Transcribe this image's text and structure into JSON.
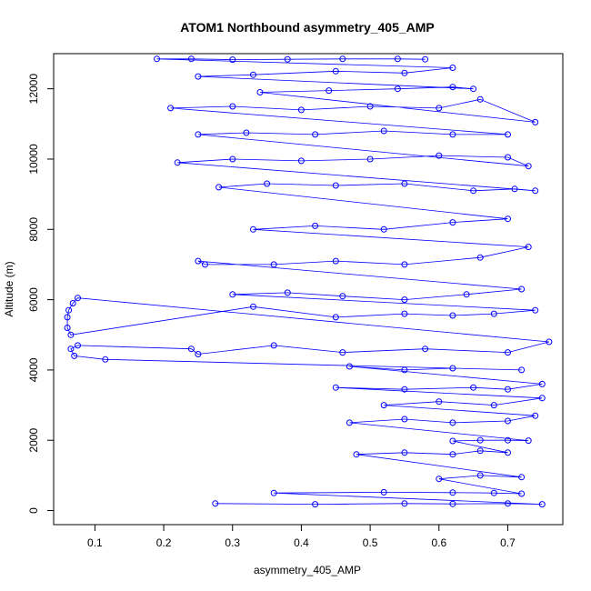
{
  "chart_data": {
    "type": "scatter",
    "title": "ATOM1 Northbound asymmetry_405_AMP",
    "xlabel": "asymmetry_405_AMP",
    "ylabel": "Altitude (m)",
    "xlim": [
      0.04,
      0.78
    ],
    "ylim": [
      -400,
      13000
    ],
    "x_ticks": [
      0.1,
      0.2,
      0.3,
      0.4,
      0.5,
      0.6,
      0.7
    ],
    "y_ticks": [
      0,
      2000,
      4000,
      6000,
      8000,
      10000,
      12000
    ],
    "grid": false,
    "legend": "none",
    "color": "#0000ff",
    "marker": "open-circle",
    "connected": true,
    "series": [
      {
        "points": [
          [
            0.275,
            200
          ],
          [
            0.42,
            180
          ],
          [
            0.55,
            200
          ],
          [
            0.62,
            190
          ],
          [
            0.7,
            200
          ],
          [
            0.75,
            180
          ],
          [
            0.36,
            500
          ],
          [
            0.52,
            520
          ],
          [
            0.62,
            510
          ],
          [
            0.68,
            500
          ],
          [
            0.72,
            480
          ],
          [
            0.6,
            900
          ],
          [
            0.66,
            1000
          ],
          [
            0.72,
            950
          ],
          [
            0.48,
            1600
          ],
          [
            0.55,
            1650
          ],
          [
            0.62,
            1600
          ],
          [
            0.66,
            1700
          ],
          [
            0.7,
            1650
          ],
          [
            0.62,
            1980
          ],
          [
            0.66,
            2000
          ],
          [
            0.7,
            2000
          ],
          [
            0.73,
            1990
          ],
          [
            0.47,
            2500
          ],
          [
            0.55,
            2600
          ],
          [
            0.62,
            2500
          ],
          [
            0.7,
            2550
          ],
          [
            0.74,
            2700
          ],
          [
            0.52,
            3000
          ],
          [
            0.6,
            3100
          ],
          [
            0.68,
            3000
          ],
          [
            0.75,
            3200
          ],
          [
            0.45,
            3500
          ],
          [
            0.55,
            3450
          ],
          [
            0.65,
            3500
          ],
          [
            0.7,
            3450
          ],
          [
            0.75,
            3600
          ],
          [
            0.47,
            4100
          ],
          [
            0.55,
            4000
          ],
          [
            0.62,
            4050
          ],
          [
            0.72,
            4000
          ],
          [
            0.115,
            4300
          ],
          [
            0.07,
            4400
          ],
          [
            0.065,
            4600
          ],
          [
            0.075,
            4700
          ],
          [
            0.24,
            4600
          ],
          [
            0.25,
            4450
          ],
          [
            0.36,
            4700
          ],
          [
            0.46,
            4500
          ],
          [
            0.58,
            4600
          ],
          [
            0.7,
            4500
          ],
          [
            0.76,
            4800
          ],
          [
            0.075,
            6050
          ],
          [
            0.068,
            5900
          ],
          [
            0.062,
            5700
          ],
          [
            0.06,
            5500
          ],
          [
            0.06,
            5200
          ],
          [
            0.065,
            5000
          ],
          [
            0.33,
            5800
          ],
          [
            0.45,
            5500
          ],
          [
            0.55,
            5600
          ],
          [
            0.62,
            5550
          ],
          [
            0.68,
            5600
          ],
          [
            0.74,
            5700
          ],
          [
            0.3,
            6150
          ],
          [
            0.38,
            6200
          ],
          [
            0.46,
            6100
          ],
          [
            0.55,
            6000
          ],
          [
            0.64,
            6150
          ],
          [
            0.72,
            6300
          ],
          [
            0.25,
            7100
          ],
          [
            0.26,
            7000
          ],
          [
            0.36,
            7000
          ],
          [
            0.45,
            7100
          ],
          [
            0.55,
            7000
          ],
          [
            0.66,
            7200
          ],
          [
            0.73,
            7500
          ],
          [
            0.33,
            8000
          ],
          [
            0.42,
            8100
          ],
          [
            0.52,
            8000
          ],
          [
            0.62,
            8200
          ],
          [
            0.7,
            8300
          ],
          [
            0.28,
            9200
          ],
          [
            0.35,
            9300
          ],
          [
            0.45,
            9250
          ],
          [
            0.55,
            9300
          ],
          [
            0.65,
            9100
          ],
          [
            0.71,
            9150
          ],
          [
            0.74,
            9100
          ],
          [
            0.22,
            9900
          ],
          [
            0.3,
            10000
          ],
          [
            0.4,
            9950
          ],
          [
            0.5,
            10000
          ],
          [
            0.6,
            10100
          ],
          [
            0.7,
            10050
          ],
          [
            0.73,
            9800
          ],
          [
            0.25,
            10700
          ],
          [
            0.32,
            10750
          ],
          [
            0.42,
            10700
          ],
          [
            0.52,
            10800
          ],
          [
            0.62,
            10700
          ],
          [
            0.7,
            10700
          ],
          [
            0.21,
            11450
          ],
          [
            0.3,
            11500
          ],
          [
            0.4,
            11400
          ],
          [
            0.5,
            11500
          ],
          [
            0.6,
            11450
          ],
          [
            0.66,
            11700
          ],
          [
            0.74,
            11050
          ],
          [
            0.34,
            11900
          ],
          [
            0.44,
            11950
          ],
          [
            0.54,
            12000
          ],
          [
            0.62,
            12050
          ],
          [
            0.65,
            12000
          ],
          [
            0.25,
            12350
          ],
          [
            0.33,
            12400
          ],
          [
            0.45,
            12500
          ],
          [
            0.55,
            12450
          ],
          [
            0.62,
            12600
          ],
          [
            0.19,
            12850
          ],
          [
            0.24,
            12850
          ],
          [
            0.3,
            12830
          ],
          [
            0.38,
            12840
          ],
          [
            0.46,
            12850
          ],
          [
            0.54,
            12850
          ],
          [
            0.58,
            12840
          ]
        ]
      }
    ]
  }
}
